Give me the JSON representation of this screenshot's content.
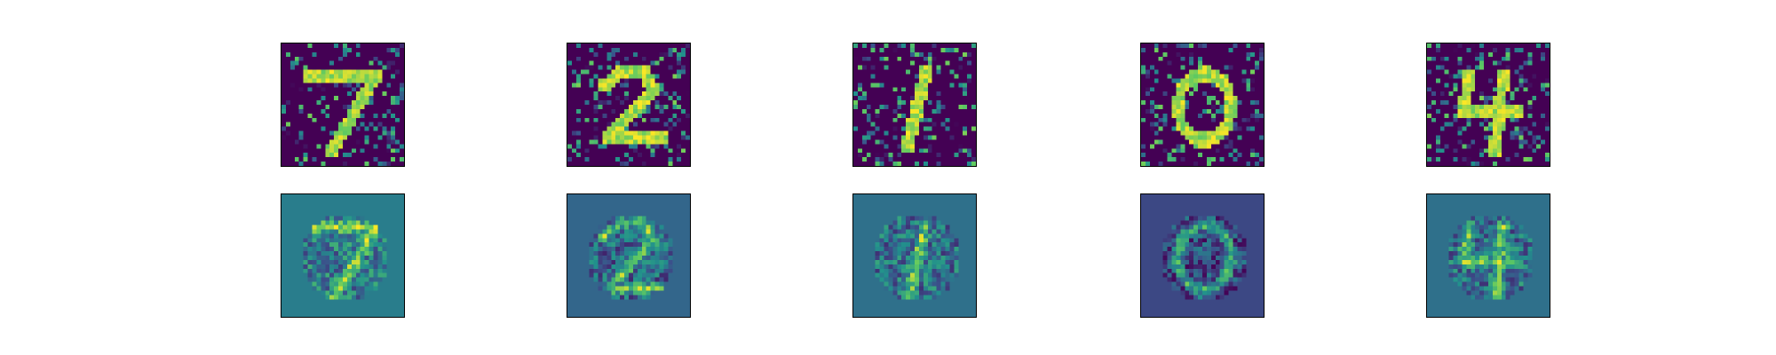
{
  "figure": {
    "rows": [
      "noisy-input",
      "reconstruction"
    ],
    "digits": [
      "7",
      "2",
      "1",
      "0",
      "4"
    ],
    "noisy_background_color": "#440154",
    "reconstruction_background_colors": [
      "#2e7d8e",
      "#31688e",
      "#2f6f8e",
      "#3b518b",
      "#2f6f8e"
    ],
    "colormap": "viridis"
  }
}
